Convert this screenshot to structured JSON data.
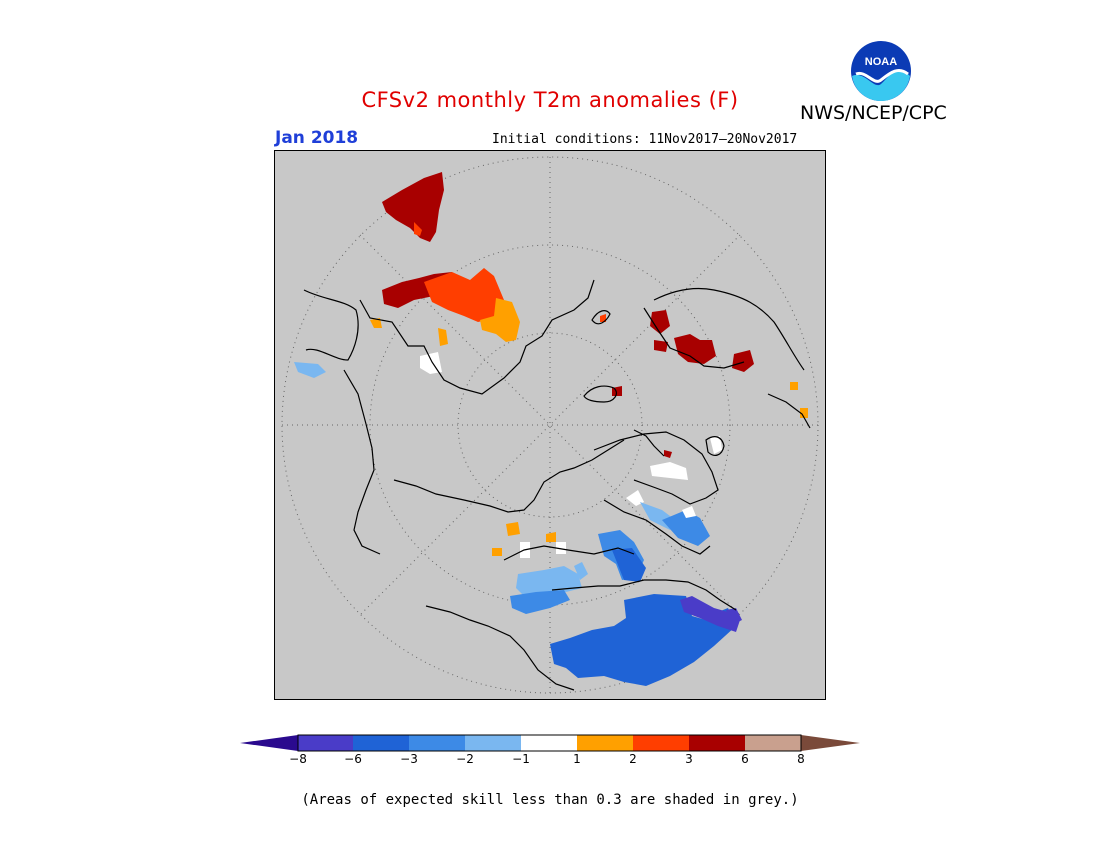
{
  "title": "CFSv2 monthly T2m anomalies (F)",
  "agency": "NWS/NCEP/CPC",
  "logo_text": "NOAA",
  "month": "Jan 2018",
  "initial_conditions": "Initial conditions: 11Nov2017–20Nov2017",
  "map": {
    "projection": "polar stereographic (north pole)",
    "background_color": "#c8c8c8",
    "coastline_color": "#000000",
    "grid_style": "dotted"
  },
  "colorbar": {
    "labels": [
      "−8",
      "−6",
      "−3",
      "−2",
      "−1",
      "1",
      "2",
      "3",
      "6",
      "8"
    ],
    "colors": [
      "#2a0a8e",
      "#4a3cc8",
      "#1f63d6",
      "#3d8ae6",
      "#7ab7f0",
      "#ffffff",
      "#ffa000",
      "#ff3e00",
      "#a80000",
      "#c9a08e",
      "#7a4a3a"
    ]
  },
  "footnote": "(Areas of expected skill less than 0.3 are shaded in grey.)"
}
